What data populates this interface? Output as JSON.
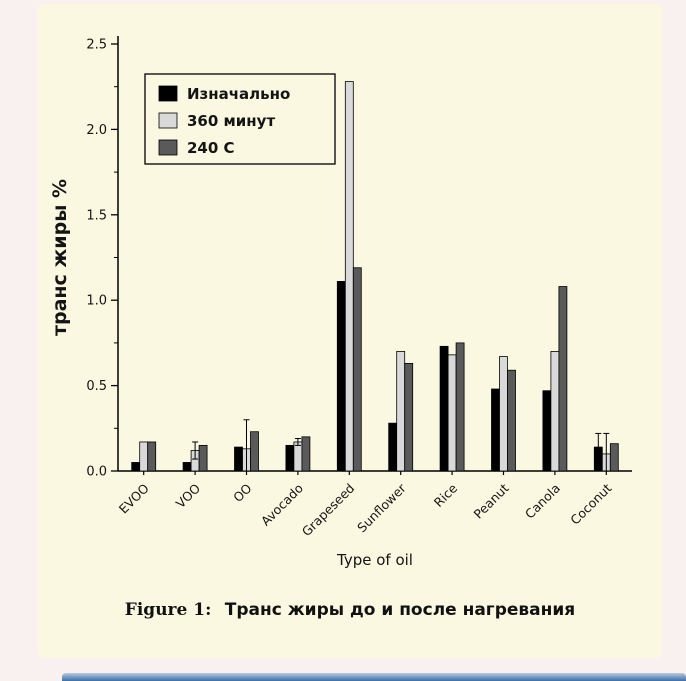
{
  "page": {
    "background": "#f8f1f0",
    "panel_color": "#fbf8e2",
    "bottom_strip_color": "#3c6ea8"
  },
  "caption": {
    "prefix": "Figure 1:",
    "text": "Транс жиры до и после нагревания"
  },
  "chart_data": {
    "type": "bar",
    "title": "",
    "xlabel": "Type of oil",
    "ylabel": "транс жиры %",
    "ylim": [
      0,
      2.5
    ],
    "yticks": [
      0.0,
      0.5,
      1.0,
      1.5,
      2.0,
      2.5
    ],
    "grid": false,
    "legend_position": "top-left",
    "categories": [
      "EVOO",
      "VOO",
      "OO",
      "Avocado",
      "Grapeseed",
      "Sunflower",
      "Rice",
      "Peanut",
      "Canola",
      "Coconut"
    ],
    "series": [
      {
        "name": "Изначально",
        "color": "#000000",
        "values": [
          0.05,
          0.05,
          0.14,
          0.15,
          1.11,
          0.28,
          0.73,
          0.48,
          0.47,
          0.14
        ],
        "errors": [
          0,
          0,
          0,
          0,
          0,
          0,
          0,
          0,
          0,
          0.08
        ]
      },
      {
        "name": "360 минут",
        "color": "#d9d9d9",
        "values": [
          0.17,
          0.12,
          0.13,
          0.17,
          2.28,
          0.7,
          0.68,
          0.67,
          0.7,
          0.1
        ],
        "errors": [
          0,
          0.05,
          0.17,
          0.02,
          0,
          0,
          0,
          0,
          0,
          0.12
        ]
      },
      {
        "name": "240 C",
        "color": "#5a5a5a",
        "values": [
          0.17,
          0.15,
          0.23,
          0.2,
          1.19,
          0.63,
          0.75,
          0.59,
          1.08,
          0.16
        ],
        "errors": [
          0,
          0,
          0,
          0,
          0,
          0,
          0,
          0,
          0,
          0
        ]
      }
    ]
  }
}
